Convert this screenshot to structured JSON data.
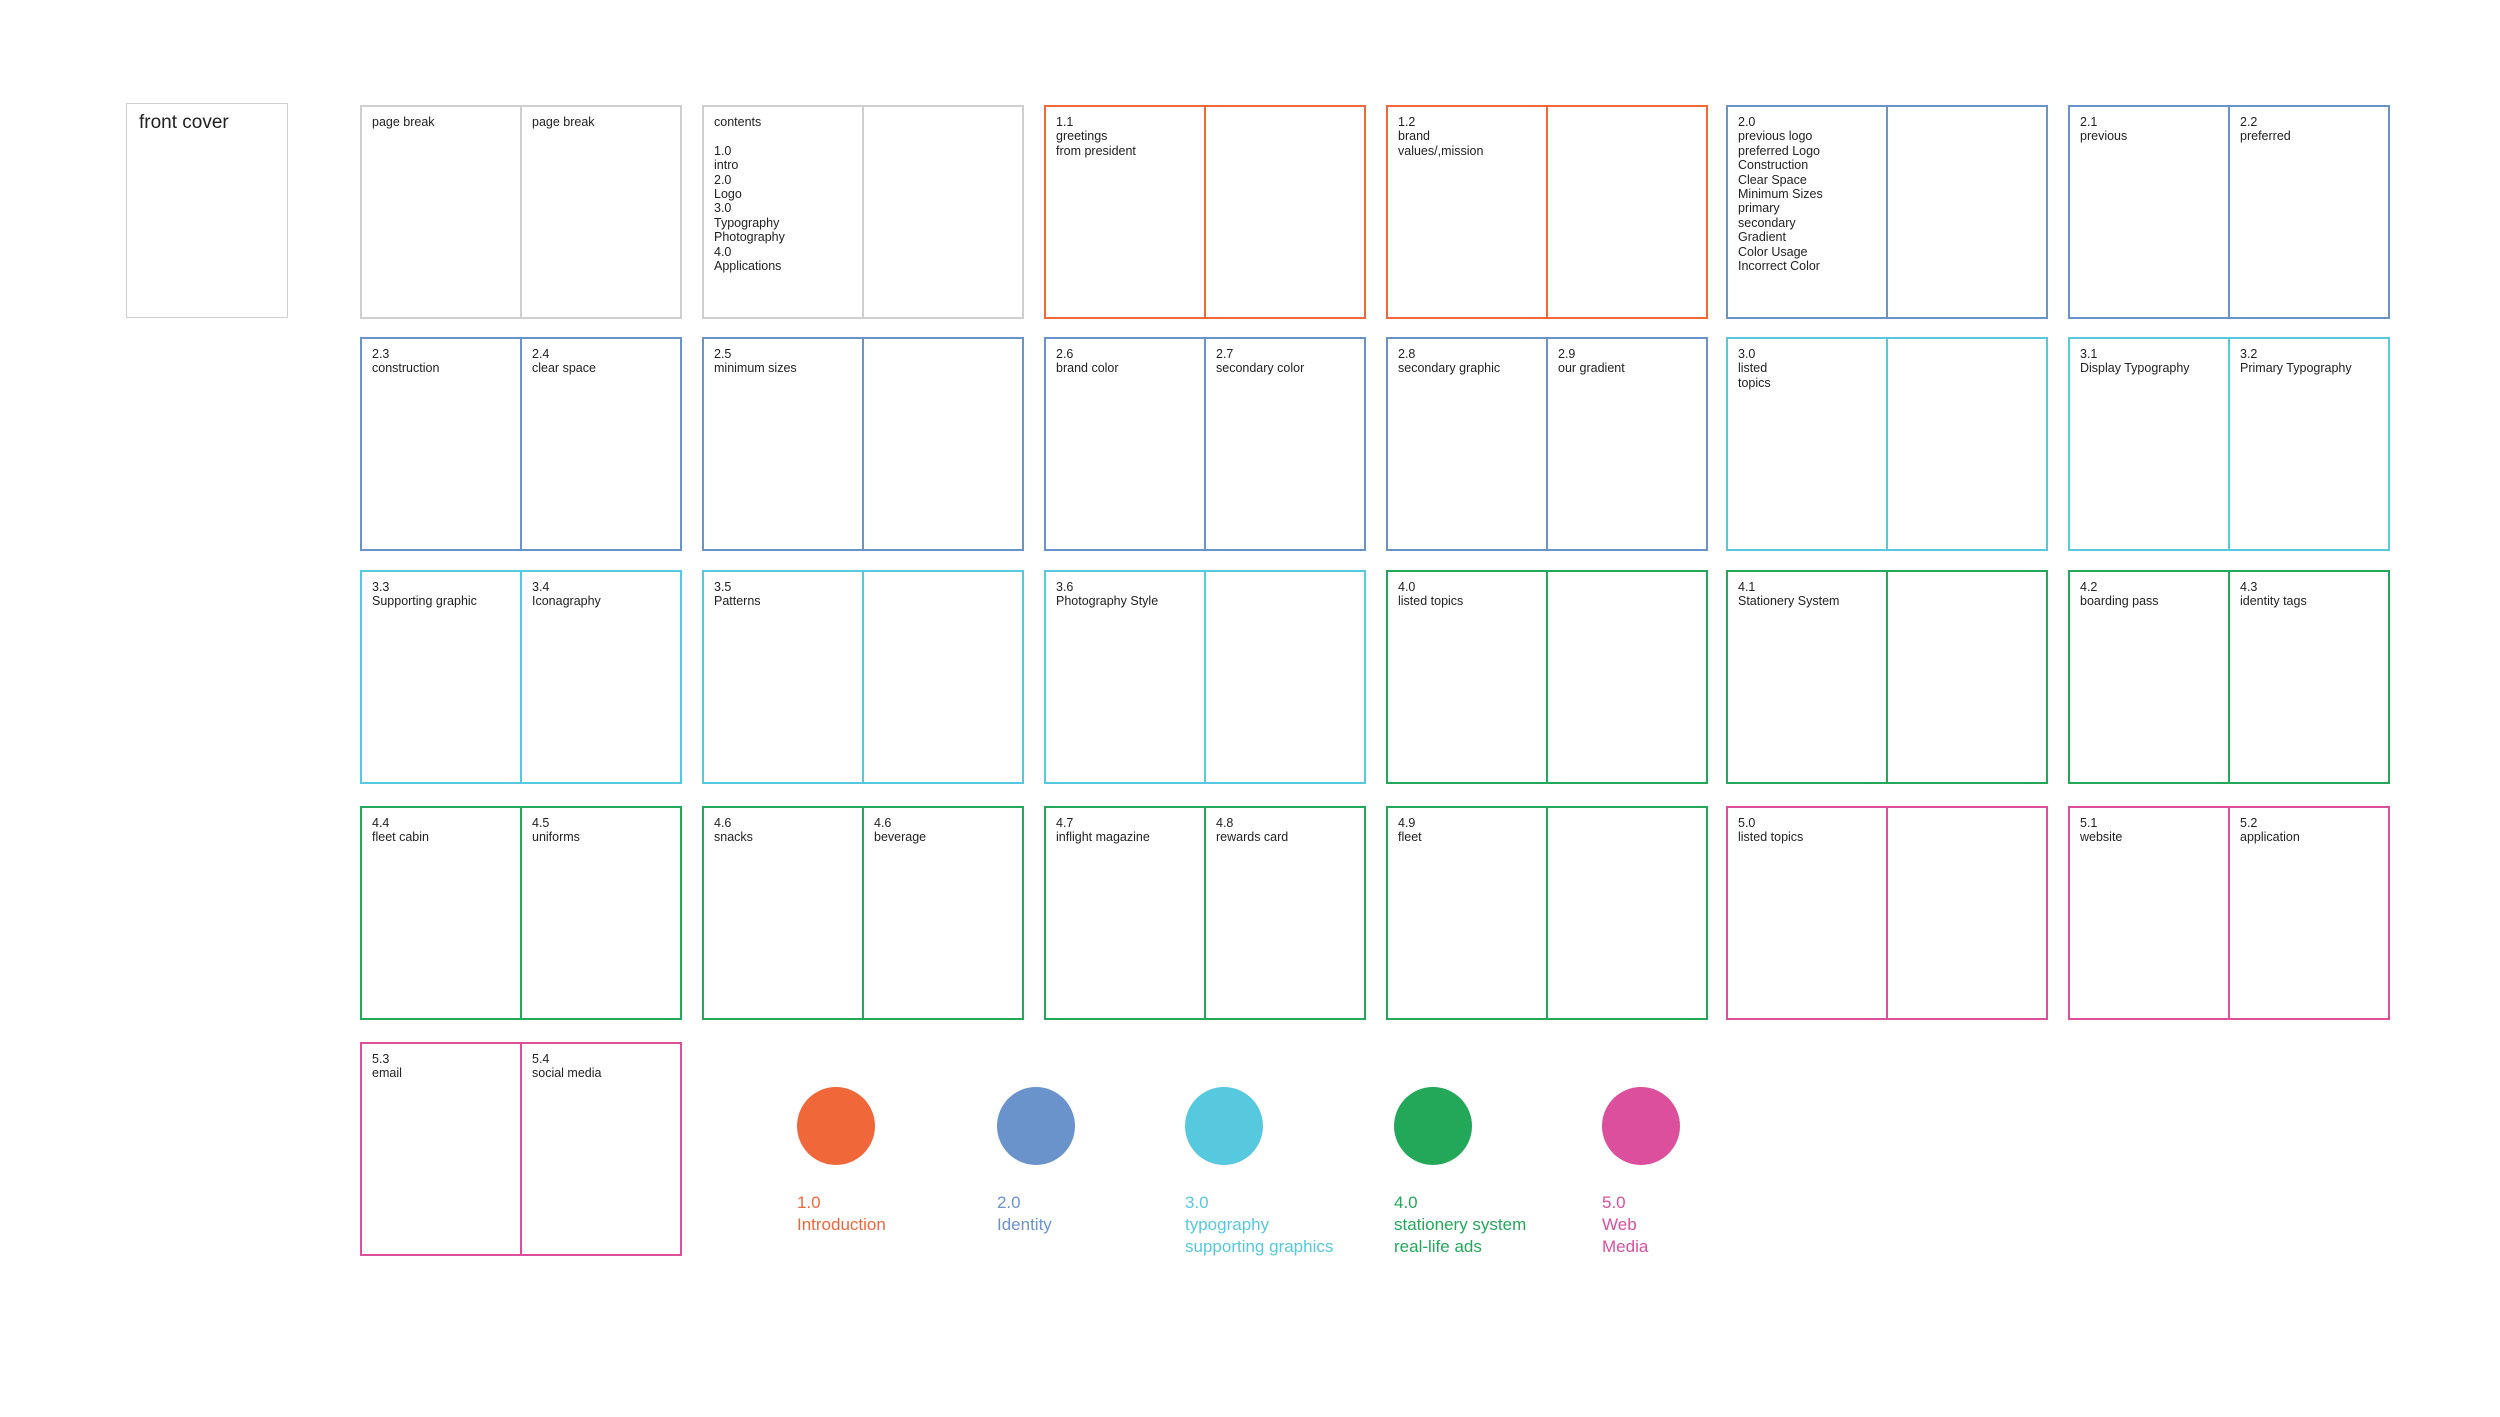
{
  "cover": {
    "label": "front cover"
  },
  "spreads": [
    {
      "color": "grey",
      "left": "page break",
      "right": "page break"
    },
    {
      "color": "grey",
      "left": "contents\n\n1.0\nintro\n2.0\nLogo\n3.0\nTypography\nPhotography\n4.0\nApplications",
      "right": ""
    },
    {
      "color": "intro",
      "left": "1.1\ngreetings\nfrom president",
      "right": ""
    },
    {
      "color": "intro",
      "left": "1.2\nbrand\nvalues/,mission",
      "right": ""
    },
    {
      "color": "ident",
      "left": "2.0\nprevious logo\npreferred Logo\nConstruction\nClear Space\nMinimum Sizes\nprimary\nsecondary\nGradient\nColor Usage\nIncorrect Color",
      "right": ""
    },
    {
      "color": "ident",
      "left": "2.1\nprevious",
      "right": "2.2\npreferred"
    },
    {
      "color": "ident",
      "left": "2.3\nconstruction",
      "right": "2.4\nclear space"
    },
    {
      "color": "ident",
      "left": "2.5\nminimum sizes",
      "right": ""
    },
    {
      "color": "ident",
      "left": "2.6\nbrand color",
      "right": "2.7\nsecondary color"
    },
    {
      "color": "ident",
      "left": "2.8\nsecondary graphic",
      "right": "2.9\nour gradient"
    },
    {
      "color": "typo",
      "left": "3.0\nlisted\ntopics",
      "right": ""
    },
    {
      "color": "typo",
      "left": "3.1\nDisplay Typography",
      "right": "3.2\nPrimary Typography"
    },
    {
      "color": "typo",
      "left": "3.3\nSupporting graphic",
      "right": "3.4\nIconagraphy"
    },
    {
      "color": "typo",
      "left": "3.5\nPatterns",
      "right": ""
    },
    {
      "color": "typo",
      "left": "3.6\nPhotography Style",
      "right": ""
    },
    {
      "color": "stat",
      "left": "4.0\nlisted topics",
      "right": ""
    },
    {
      "color": "stat",
      "left": "4.1\nStationery System",
      "right": ""
    },
    {
      "color": "stat",
      "left": "4.2\nboarding pass",
      "right": "4.3\nidentity tags"
    },
    {
      "color": "stat",
      "left": "4.4\nfleet cabin",
      "right": "4.5\nuniforms"
    },
    {
      "color": "stat",
      "left": "4.6\nsnacks",
      "right": "4.6\nbeverage"
    },
    {
      "color": "stat",
      "left": "4.7\ninflight magazine",
      "right": "4.8\nrewards card"
    },
    {
      "color": "stat",
      "left": "4.9\nfleet",
      "right": ""
    },
    {
      "color": "web",
      "left": "5.0\nlisted topics",
      "right": ""
    },
    {
      "color": "web",
      "left": "5.1\nwebsite",
      "right": "5.2\napplication"
    },
    {
      "color": "web",
      "left": "5.3\nemail",
      "right": "5.4\nsocial media"
    }
  ],
  "legend": [
    {
      "key": "intro",
      "color": "#f0673a",
      "number": "1.0",
      "label": "Introduction"
    },
    {
      "key": "ident",
      "color": "#6a93cc",
      "number": "2.0",
      "label": "Identity"
    },
    {
      "key": "typo",
      "color": "#56c9de",
      "number": "3.0",
      "label": "typography\nsupporting graphics"
    },
    {
      "key": "stat",
      "color": "#23a85a",
      "number": "4.0",
      "label": "stationery system\nreal-life ads"
    },
    {
      "key": "web",
      "color": "#dc4f9d",
      "number": "5.0",
      "label": "Web\nMedia"
    }
  ]
}
